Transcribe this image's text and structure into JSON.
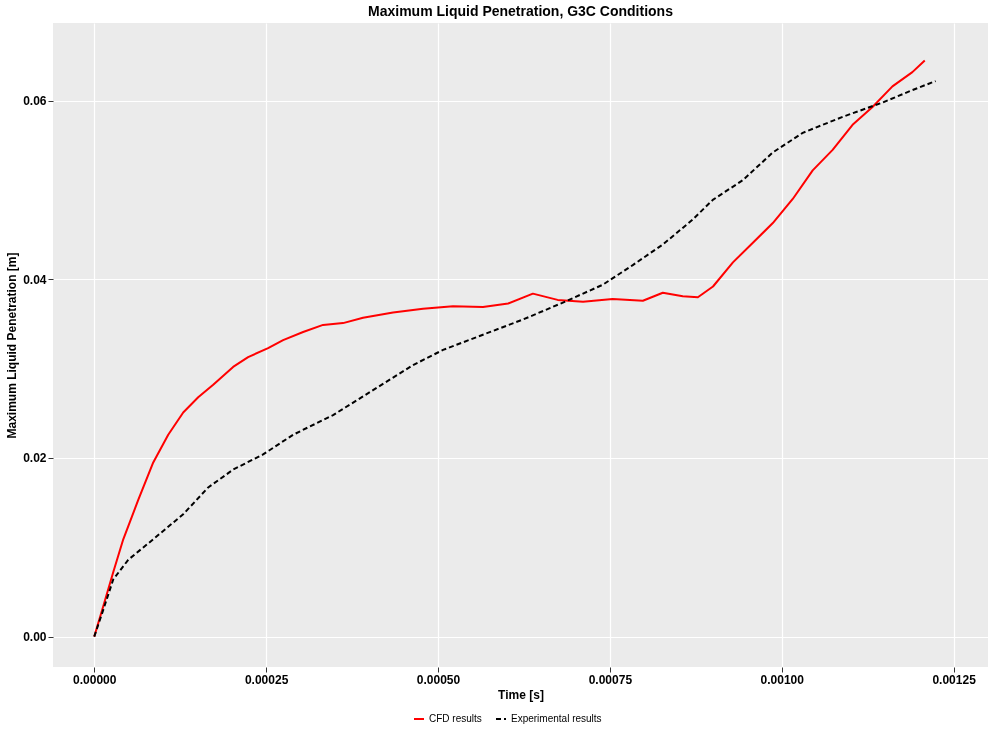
{
  "chart_data": {
    "type": "line",
    "title": "Maximum Liquid Penetration, G3C Conditions",
    "xlabel": "Time [s]",
    "ylabel": "Maximum Liquid Penetration [m]",
    "xlim": [
      -6e-05,
      0.0013
    ],
    "ylim": [
      -0.0034,
      0.0687
    ],
    "xticks": [
      {
        "value": 0,
        "label": "0.00000"
      },
      {
        "value": 0.00025,
        "label": "0.00025"
      },
      {
        "value": 0.0005,
        "label": "0.00050"
      },
      {
        "value": 0.00075,
        "label": "0.00075"
      },
      {
        "value": 0.001,
        "label": "0.00100"
      },
      {
        "value": 0.00125,
        "label": "0.00125"
      }
    ],
    "yticks": [
      {
        "value": 0,
        "label": "0.00"
      },
      {
        "value": 0.02,
        "label": "0.02"
      },
      {
        "value": 0.04,
        "label": "0.04"
      },
      {
        "value": 0.06,
        "label": "0.06"
      }
    ],
    "grid": true,
    "legend": "bottom",
    "series": [
      {
        "name": "CFD results",
        "color": "#ff0000",
        "line_style": "solid",
        "x": [
          0,
          1.31e-05,
          2.76e-05,
          4.22e-05,
          6.4e-05,
          8.58e-05,
          0.0001076,
          0.0001294,
          0.0001512,
          0.000173,
          0.000202,
          0.0002238,
          0.0002529,
          0.0002747,
          0.0003038,
          0.0003328,
          0.0003619,
          0.000391,
          0.0004346,
          0.0004782,
          0.0005218,
          0.0005654,
          0.000602,
          0.000638,
          0.000674,
          0.000711,
          0.000754,
          0.000798,
          0.000827,
          0.000856,
          0.000878,
          0.0009,
          0.000929,
          0.000958,
          0.000987,
          0.001016,
          0.001045,
          0.001074,
          0.001103,
          0.001132,
          0.001161,
          0.00119,
          0.001208
        ],
        "values": [
          0,
          0.0034,
          0.0072,
          0.0109,
          0.0153,
          0.0195,
          0.0226,
          0.0251,
          0.0268,
          0.0282,
          0.0302,
          0.0313,
          0.0323,
          0.0332,
          0.0341,
          0.0349,
          0.0351,
          0.0357,
          0.0363,
          0.0367,
          0.037,
          0.0369,
          0.0373,
          0.0384,
          0.0377,
          0.0375,
          0.0378,
          0.0376,
          0.0385,
          0.0381,
          0.038,
          0.0392,
          0.0419,
          0.0441,
          0.0463,
          0.049,
          0.0522,
          0.0545,
          0.0573,
          0.0593,
          0.0616,
          0.0632,
          0.0645
        ]
      },
      {
        "name": "Experimental results",
        "color": "#000000",
        "line_style": "dashed",
        "x": [
          0,
          1.31e-05,
          2.76e-05,
          4.94e-05,
          8.58e-05,
          0.0001294,
          0.0001657,
          0.000202,
          0.0002456,
          0.0002892,
          0.0003474,
          0.0004055,
          0.0004637,
          0.0005073,
          0.0005654,
          0.0006235,
          0.0006817,
          0.0007398,
          0.0007834,
          0.000827,
          0.0008706,
          0.0008997,
          0.0009433,
          0.0009869,
          0.0010305,
          0.0010887,
          0.0011468,
          0.0011904,
          0.0012238
        ],
        "values": [
          0,
          0.003,
          0.0064,
          0.0086,
          0.0109,
          0.0137,
          0.0167,
          0.0187,
          0.0204,
          0.0226,
          0.0248,
          0.0276,
          0.0304,
          0.0321,
          0.0338,
          0.0355,
          0.0374,
          0.0394,
          0.0416,
          0.0439,
          0.0467,
          0.0489,
          0.0511,
          0.0542,
          0.0564,
          0.0582,
          0.0598,
          0.0612,
          0.0622
        ]
      }
    ]
  }
}
